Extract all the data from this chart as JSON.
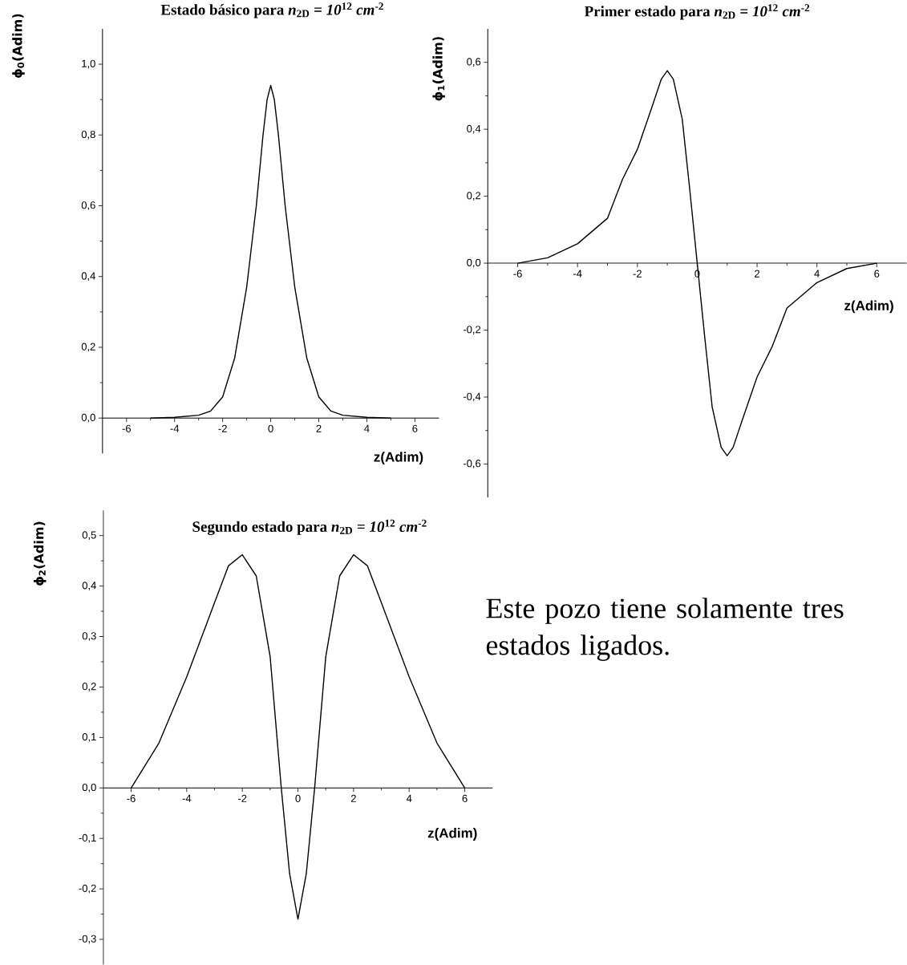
{
  "chart_data": [
    {
      "type": "line",
      "title": "Estado básico para *n*$_{2D}$ = *10*$^{12}$ *cm*$^{-2}$",
      "xlabel": "z(Adim)",
      "ylabel": "ϕ$_{0}$(Adim)",
      "marker": "none",
      "line_style": "solid",
      "xlim": [
        -7,
        7
      ],
      "ylim": [
        -0.1,
        1.1
      ],
      "xticks": [
        -6,
        -4,
        -2,
        0,
        2,
        4,
        6
      ],
      "yticks": [
        {
          "value": 0,
          "label": "0,0"
        },
        {
          "value": 0.2,
          "label": "0,2"
        },
        {
          "value": 0.4,
          "label": "0,4"
        },
        {
          "value": 0.6,
          "label": "0,6"
        },
        {
          "value": 0.8,
          "label": "0,8"
        },
        {
          "value": 1.0,
          "label": "1,0"
        }
      ],
      "series": [
        {
          "color": "#000000",
          "x": [
            -5,
            -4,
            -3,
            -2.5,
            -2,
            -1.5,
            -1,
            -0.6,
            -0.32,
            -0.15,
            0,
            0.15,
            0.32,
            0.6,
            1,
            1.5,
            2,
            2.5,
            3,
            4,
            5
          ],
          "values": [
            0,
            0.002,
            0.008,
            0.02,
            0.06,
            0.17,
            0.37,
            0.6,
            0.8,
            0.9,
            0.94,
            0.9,
            0.8,
            0.6,
            0.37,
            0.17,
            0.06,
            0.02,
            0.008,
            0.002,
            0
          ]
        }
      ]
    },
    {
      "type": "line",
      "title": "Primer estado para *n*$_{2D}$ = *10*$^{12}$ *cm*$^{-2}$",
      "xlabel": "z(Adim)",
      "ylabel": "ϕ$_{1}$(Adim)",
      "marker": "none",
      "line_style": "solid",
      "xlim": [
        -7,
        7
      ],
      "ylim": [
        -0.7,
        0.7
      ],
      "xticks": [
        -6,
        -4,
        -2,
        0,
        2,
        4,
        6
      ],
      "yticks": [
        {
          "value": -0.6,
          "label": "-0,6"
        },
        {
          "value": -0.4,
          "label": "-0,4"
        },
        {
          "value": -0.2,
          "label": "-0,2"
        },
        {
          "value": 0,
          "label": "0,0"
        },
        {
          "value": 0.2,
          "label": "0,2"
        },
        {
          "value": 0.4,
          "label": "0,4"
        },
        {
          "value": 0.6,
          "label": "0,6"
        }
      ],
      "series": [
        {
          "color": "#000000",
          "x": [
            -6,
            -5,
            -4,
            -3,
            -2.5,
            -2,
            -1.5,
            -1.2,
            -1,
            -0.8,
            -0.5,
            -0.25,
            0,
            0.25,
            0.5,
            0.8,
            1,
            1.2,
            1.5,
            2,
            2.5,
            3,
            4,
            5,
            6
          ],
          "values": [
            0,
            0.016,
            0.058,
            0.134,
            0.25,
            0.34,
            0.47,
            0.55,
            0.575,
            0.55,
            0.43,
            0.22,
            0,
            -0.22,
            -0.43,
            -0.55,
            -0.575,
            -0.55,
            -0.47,
            -0.34,
            -0.25,
            -0.134,
            -0.058,
            -0.016,
            0
          ]
        }
      ]
    },
    {
      "type": "line",
      "title": "Segundo estado para *n*$_{2D}$ = *10*$^{12}$ *cm*$^{-2}$",
      "xlabel": "z(Adim)",
      "ylabel": "ϕ$_{2}$(Adim)",
      "marker": "none",
      "line_style": "solid",
      "xlim": [
        -7,
        7
      ],
      "ylim": [
        -0.35,
        0.55
      ],
      "xticks": [
        -6,
        -4,
        -2,
        0,
        2,
        4,
        6
      ],
      "yticks": [
        {
          "value": -0.3,
          "label": "-0,3"
        },
        {
          "value": -0.2,
          "label": "-0,2"
        },
        {
          "value": -0.1,
          "label": "-0,1"
        },
        {
          "value": 0,
          "label": "0,0"
        },
        {
          "value": 0.1,
          "label": "0,1"
        },
        {
          "value": 0.2,
          "label": "0,2"
        },
        {
          "value": 0.3,
          "label": "0,3"
        },
        {
          "value": 0.4,
          "label": "0,4"
        },
        {
          "value": 0.5,
          "label": "0,5"
        }
      ],
      "series": [
        {
          "color": "#000000",
          "x": [
            -6,
            -5,
            -4,
            -3,
            -2.5,
            -2,
            -1.5,
            -1,
            -0.6,
            -0.3,
            0,
            0.3,
            0.6,
            1,
            1.5,
            2,
            2.5,
            3,
            4,
            5,
            6
          ],
          "values": [
            0,
            0.089,
            0.22,
            0.367,
            0.44,
            0.462,
            0.42,
            0.26,
            0,
            -0.17,
            -0.26,
            -0.17,
            0,
            0.26,
            0.42,
            0.462,
            0.44,
            0.367,
            0.22,
            0.089,
            0
          ]
        }
      ]
    },
    {
      "type": "other",
      "annotations": [
        "Este pozo tiene solamente tres estados ligados."
      ]
    }
  ]
}
